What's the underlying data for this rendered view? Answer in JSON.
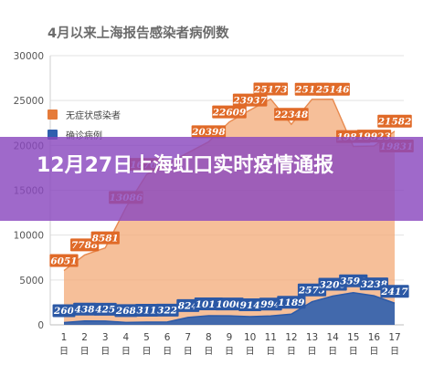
{
  "chart_data": {
    "type": "area",
    "title": "4月以来上海报告感染者病例数",
    "categories": [
      "1\n日",
      "2\n日",
      "3\n日",
      "4\n日",
      "5\n日",
      "6\n日",
      "7\n日",
      "8\n日",
      "9\n日",
      "10\n日",
      "11\n日",
      "12\n日",
      "13\n日",
      "14\n日",
      "15\n日",
      "16\n日",
      "17\n日"
    ],
    "ylim": [
      0,
      30000
    ],
    "yticks": [
      "0",
      "5000",
      "10000",
      "15000",
      "20000",
      "25000",
      "30000"
    ],
    "series": [
      {
        "name": "无症状感染者",
        "color": "#f3a977",
        "label_color": "#e06a28",
        "values": [
          6051,
          7788,
          8581,
          13086,
          16766,
          null,
          null,
          20398,
          22609,
          23937,
          25173,
          22348,
          25141,
          25146,
          19872,
          19923,
          21582
        ],
        "labels": [
          "6051",
          "7788",
          "8581",
          "13086",
          "16766",
          "",
          "",
          "20398",
          "22609",
          "23937",
          "25173",
          "22348",
          "25141",
          "25146",
          "19872",
          "19923",
          "21582"
        ],
        "extra_labels": [
          "19831"
        ]
      },
      {
        "name": "确诊病例",
        "color": "#2f5fae",
        "label_color": "#2b58a5",
        "values": [
          260,
          438,
          425,
          268,
          311,
          322,
          824,
          1015,
          1006,
          914,
          994,
          1189,
          2573,
          3200,
          3590,
          3238,
          2417
        ],
        "labels": [
          "260",
          "438",
          "425",
          "268",
          "311",
          "322",
          "824",
          "1015",
          "1006",
          "914",
          "994",
          "1189",
          "2573",
          "3200",
          "3590",
          "3238",
          "2417"
        ]
      }
    ],
    "grid": true,
    "legend_position": "top-left"
  },
  "banner": {
    "text": "12月27日上海虹口实时疫情通报",
    "color": "#8a48be"
  }
}
